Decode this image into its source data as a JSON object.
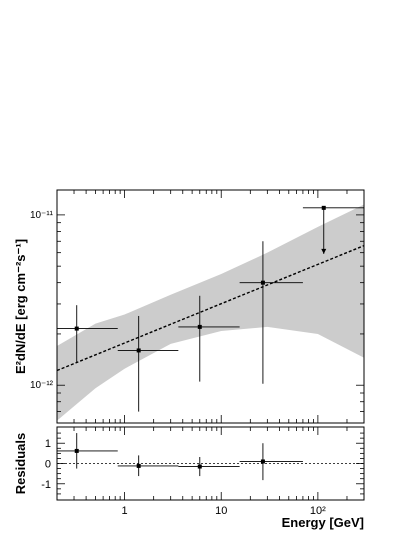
{
  "chart_data": [
    {
      "type": "scatter",
      "panel": "spectrum",
      "xlabel": "Energy [GeV]",
      "ylabel": "E²dN/dE [erg cm⁻²s⁻¹]",
      "x_scale": "log",
      "y_scale": "log",
      "xlim": [
        0.2,
        300
      ],
      "ylim": [
        6e-13,
        1.4e-11
      ],
      "x_ticks": [
        {
          "value": 1,
          "label": "1"
        },
        {
          "value": 10,
          "label": "10"
        },
        {
          "value": 100,
          "label": "10²"
        }
      ],
      "y_ticks": [
        {
          "value": 1e-12,
          "label": "10⁻¹²"
        },
        {
          "value": 1e-11,
          "label": "10⁻¹¹"
        }
      ],
      "points": [
        {
          "x": 0.32,
          "y": 2.15e-12,
          "xlo": 0.2,
          "xhi": 0.85,
          "ylo": 1.35e-12,
          "yhi": 2.95e-12,
          "upper_limit": false
        },
        {
          "x": 1.4,
          "y": 1.6e-12,
          "xlo": 0.85,
          "xhi": 3.6,
          "ylo": 7e-13,
          "yhi": 2.55e-12,
          "upper_limit": false
        },
        {
          "x": 6.0,
          "y": 2.2e-12,
          "xlo": 3.6,
          "xhi": 15.5,
          "ylo": 1.05e-12,
          "yhi": 3.35e-12,
          "upper_limit": false
        },
        {
          "x": 27,
          "y": 4e-12,
          "xlo": 15.5,
          "xhi": 70,
          "ylo": 1.02e-12,
          "yhi": 7e-12,
          "upper_limit": false
        },
        {
          "x": 115,
          "y": 1.1e-11,
          "xlo": 70,
          "xhi": 300,
          "upper_limit": true,
          "arrow_to": 5.9e-12
        }
      ],
      "fit_line": {
        "x": [
          0.2,
          300
        ],
        "y": [
          1.22e-12,
          6.6e-12
        ],
        "style": "dashed"
      },
      "confidence_band": {
        "x": [
          0.2,
          0.5,
          1,
          3,
          10,
          30,
          100,
          300
        ],
        "upper": [
          1.7e-12,
          2.3e-12,
          2.6e-12,
          3.4e-12,
          4.5e-12,
          6e-12,
          8.5e-12,
          1.15e-11
        ],
        "lower": [
          6.2e-13,
          9.6e-13,
          1.25e-12,
          1.75e-12,
          2.08e-12,
          2.2e-12,
          2e-12,
          1.45e-12
        ],
        "color": "#cccccc"
      }
    },
    {
      "type": "scatter",
      "panel": "residuals",
      "xlabel": "Energy [GeV]",
      "ylabel": "Residuals",
      "x_scale": "log",
      "xlim": [
        0.2,
        300
      ],
      "ylim": [
        -1.8,
        1.8
      ],
      "y_ticks": [
        {
          "value": -1,
          "label": "-1"
        },
        {
          "value": 0,
          "label": "0"
        },
        {
          "value": 1,
          "label": "1"
        }
      ],
      "zero_line": {
        "y": 0,
        "style": "dotted"
      },
      "points": [
        {
          "x": 0.32,
          "y": 0.62,
          "xlo": 0.2,
          "xhi": 0.85,
          "ylo": -0.25,
          "yhi": 1.5
        },
        {
          "x": 1.4,
          "y": -0.12,
          "xlo": 0.85,
          "xhi": 3.6,
          "ylo": -0.62,
          "yhi": 0.4
        },
        {
          "x": 6.0,
          "y": -0.15,
          "xlo": 3.6,
          "xhi": 15.5,
          "ylo": -0.62,
          "yhi": 0.32
        },
        {
          "x": 27,
          "y": 0.1,
          "xlo": 15.5,
          "xhi": 70,
          "ylo": -0.82,
          "yhi": 1.0
        }
      ]
    }
  ]
}
